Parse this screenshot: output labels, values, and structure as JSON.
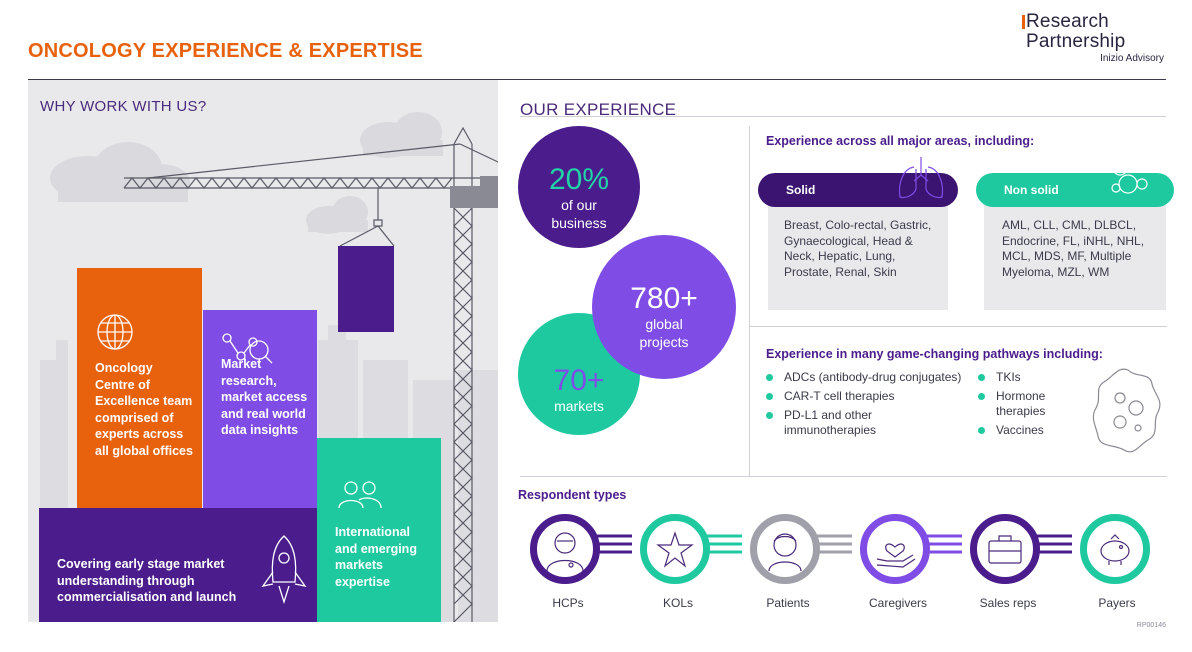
{
  "header": {
    "title": "ONCOLOGY EXPERIENCE & EXPERTISE",
    "logo_line1": "Research",
    "logo_line2": "Partnership",
    "logo_line3": "Inizio Advisory"
  },
  "why": {
    "heading": "WHY WORK WITH US?",
    "tiles": {
      "orange": "Oncology Centre of Excellence team comprised of experts across all global offices",
      "violet": "Market research, market access and real world data insights",
      "purple": "Covering early stage market understanding through commercialisation and launch",
      "green": "International and emerging markets expertise"
    }
  },
  "experience": {
    "heading": "OUR EXPERIENCE",
    "stats": [
      {
        "value": "20%",
        "label": "of our business"
      },
      {
        "value": "780+",
        "label": "global projects"
      },
      {
        "value": "70+",
        "label": "markets"
      }
    ],
    "areas_heading": "Experience across all major areas, including:",
    "solid": {
      "label": "Solid",
      "items": "Breast, Colo-rectal, Gastric, Gynaecological, Head & Neck, Hepatic, Lung, Prostate, Renal, Skin"
    },
    "nonsolid": {
      "label": "Non solid",
      "items": "AML, CLL, CML, DLBCL, Endocrine, FL, iNHL, NHL, MCL, MDS, MF, Multiple Myeloma, MZL, WM"
    },
    "pathways_heading": "Experience in many game-changing pathways including:",
    "pathways_col1": [
      "ADCs (antibody-drug conjugates)",
      "CAR-T cell therapies",
      "PD-L1 and other immunotherapies"
    ],
    "pathways_col2": [
      "TKIs",
      "Hormone therapies",
      "Vaccines"
    ]
  },
  "respondents": {
    "heading": "Respondent types",
    "items": [
      {
        "label": "HCPs",
        "color": "#4a1c8c"
      },
      {
        "label": "KOLs",
        "color": "#1ec9a0"
      },
      {
        "label": "Patients",
        "color": "#a0a0aa"
      },
      {
        "label": "Caregivers",
        "color": "#7f4de6"
      },
      {
        "label": "Sales reps",
        "color": "#4a1c8c"
      },
      {
        "label": "Payers",
        "color": "#1ec9a0"
      }
    ]
  },
  "footer_code": "RP00146"
}
